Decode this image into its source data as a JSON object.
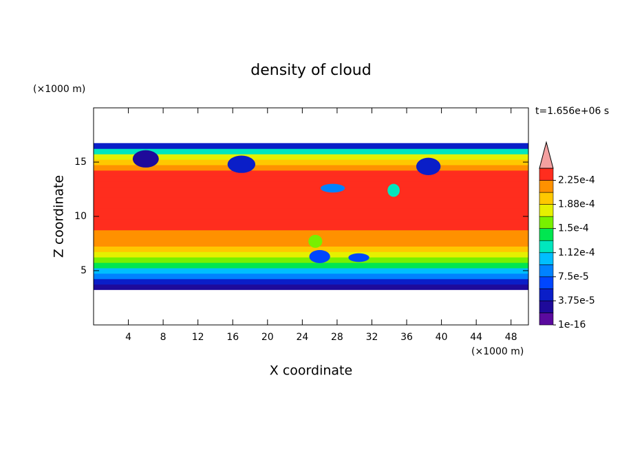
{
  "chart_data": {
    "type": "contour",
    "title": "density of cloud",
    "xlabel": "X coordinate",
    "ylabel": "Z coordinate",
    "x_unit": "(×1000 m)",
    "y_unit": "(×1000 m)",
    "annotation": "t=1.656e+06 s",
    "xlim": [
      0,
      50
    ],
    "ylim": [
      0,
      20
    ],
    "xticks": [
      4,
      8,
      12,
      16,
      20,
      24,
      28,
      32,
      36,
      40,
      44,
      48
    ],
    "yticks": [
      5,
      10,
      15
    ],
    "levels": [
      1e-16,
      1.875e-05,
      3.75e-05,
      5.625e-05,
      7.5e-05,
      9.375e-05,
      0.0001125,
      0.00013125,
      0.00015,
      0.00016875,
      0.0001875,
      0.00020625,
      0.000225
    ],
    "colors": [
      "#5a0a9e",
      "#1e0a9a",
      "#0a1ec8",
      "#0046ff",
      "#0082ff",
      "#00beff",
      "#00e6be",
      "#00e650",
      "#78f000",
      "#e6f000",
      "#ffc800",
      "#ff9100",
      "#ff2d1e"
    ],
    "extend_color": "#f4a0a0",
    "clim": [
      1e-16,
      0.00024375
    ],
    "cticks": [
      1e-16,
      {
        "value": 3.75e-05,
        "label": "3.75e-5"
      },
      {
        "value": 7.5e-05,
        "label": "7.5e-5"
      },
      {
        "value": 0.0001125,
        "label": "1.12e-4"
      },
      {
        "value": 0.00015,
        "label": "1.5e-4"
      },
      {
        "value": 0.0001875,
        "label": "1.88e-4"
      },
      {
        "value": 0.000225,
        "label": "2.25e-4"
      }
    ],
    "profile": {
      "z": [
        3.5,
        4,
        4.5,
        5,
        5.5,
        6,
        6.5,
        7,
        7.5,
        8,
        8.5,
        9,
        9.5,
        10,
        10.5,
        11,
        11.5,
        12,
        12.5,
        13,
        13.5,
        14,
        14.5,
        15,
        15.5,
        16,
        16.5
      ],
      "values": [
        2e-05,
        5e-05,
        8e-05,
        0.00011,
        0.00014,
        0.00016,
        0.00018,
        0.000195,
        0.00021,
        0.00021,
        0.000215,
        0.000225,
        0.00023,
        0.00023,
        0.00023,
        0.00023,
        0.00023,
        0.00023,
        0.00023,
        0.00023,
        0.00023,
        0.00023,
        0.00022,
        0.000205,
        0.00018,
        0.00012,
        4e-05
      ]
    },
    "features": {
      "x": [
        6,
        17,
        27.5,
        34.5,
        38.5,
        26,
        30.5,
        25.5
      ],
      "z": [
        15.3,
        14.8,
        12.6,
        12.4,
        14.6,
        6.3,
        6.2,
        7.7
      ],
      "rx": [
        1.5,
        1.6,
        1.4,
        0.7,
        1.4,
        1.2,
        1.2,
        0.8
      ],
      "rz": [
        0.8,
        0.8,
        0.4,
        0.6,
        0.8,
        0.6,
        0.4,
        0.6
      ],
      "values": [
        3e-05,
        4e-05,
        8e-05,
        0.00012,
        4e-05,
        7e-05,
        6e-05,
        0.00015
      ]
    }
  }
}
